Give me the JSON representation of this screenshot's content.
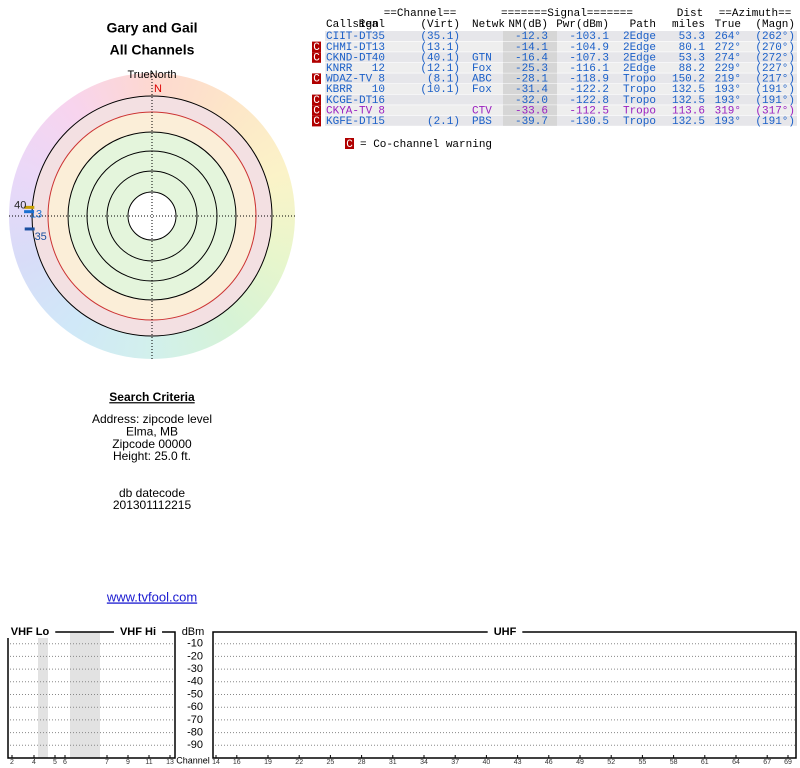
{
  "header": {
    "title": "Gary and Gail",
    "subtitle": "All Channels"
  },
  "polar": {
    "north_label": "TrueNorth",
    "north_marker": "N",
    "markers": [
      {
        "label": "40",
        "azimuth": 274,
        "color": "#c8a000"
      },
      {
        "label": "13",
        "azimuth": 272,
        "color": "#1a6fd0"
      },
      {
        "label": "35",
        "azimuth": 264,
        "color": "#1a4fa0"
      }
    ]
  },
  "table": {
    "groups": [
      {
        "text": "==Channel==",
        "x_col": "channel"
      },
      {
        "text": "=======Signal=======",
        "x_col": "signal"
      },
      {
        "text": "Dist",
        "x_col": "dist"
      },
      {
        "text": "==Azimuth==",
        "x_col": "azimuth"
      }
    ],
    "columns": [
      "Callsign",
      "Real",
      "(Virt)",
      "Netwk",
      "NM(dB)",
      "Pwr(dBm)",
      "Path",
      "miles",
      "True",
      "(Magn)"
    ],
    "rows": [
      {
        "callsign": "CIIT-DT",
        "real": "35",
        "virt": "(35.1)",
        "netwk": null,
        "nm": "-12.3",
        "pwr": "-103.1",
        "path": "2Edge",
        "miles": "53.3",
        "true": "264°",
        "magn": "(262°)",
        "color": "#1a5fc8"
      },
      {
        "flag": "C",
        "callsign": "CHMI-DT",
        "real": "13",
        "virt": "(13.1)",
        "netwk": null,
        "nm": "-14.1",
        "pwr": "-104.9",
        "path": "2Edge",
        "miles": "80.1",
        "true": "272°",
        "magn": "(270°)",
        "color": "#1a5fc8"
      },
      {
        "flag": "C",
        "callsign": "CKND-DT",
        "real": "40",
        "virt": "(40.1)",
        "netwk": "GTN",
        "nm": "-16.4",
        "pwr": "-107.3",
        "path": "2Edge",
        "miles": "53.3",
        "true": "274°",
        "magn": "(272°)",
        "color": "#1a5fc8"
      },
      {
        "callsign": "KNRR",
        "real": "12",
        "virt": "(12.1)",
        "netwk": "Fox",
        "nm": "-25.3",
        "pwr": "-116.1",
        "path": "2Edge",
        "miles": "88.2",
        "true": "229°",
        "magn": "(227°)",
        "color": "#1a5fc8"
      },
      {
        "flag": "C",
        "callsign": "WDAZ-TV",
        "real": "8",
        "virt": "(8.1)",
        "netwk": "ABC",
        "nm": "-28.1",
        "pwr": "-118.9",
        "path": "Tropo",
        "miles": "150.2",
        "true": "219°",
        "magn": "(217°)",
        "color": "#1a5fc8"
      },
      {
        "callsign": "KBRR",
        "real": "10",
        "virt": "(10.1)",
        "netwk": "Fox",
        "nm": "-31.4",
        "pwr": "-122.2",
        "path": "Tropo",
        "miles": "132.5",
        "true": "193°",
        "magn": "(191°)",
        "color": "#1a5fc8"
      },
      {
        "flag": "C",
        "callsign": "KCGE-DT",
        "real": "16",
        "virt": null,
        "netwk": null,
        "nm": "-32.0",
        "pwr": "-122.8",
        "path": "Tropo",
        "miles": "132.5",
        "true": "193°",
        "magn": "(191°)",
        "color": "#1a5fc8"
      },
      {
        "flag": "C",
        "callsign": "CKYA-TV",
        "real": "8",
        "virt": null,
        "netwk": "CTV",
        "nm": "-33.6",
        "pwr": "-112.5",
        "path": "Tropo",
        "miles": "113.6",
        "true": "319°",
        "magn": "(317°)",
        "color": "#9a1fc0"
      },
      {
        "flag": "C",
        "callsign": "KGFE-DT",
        "real": "15",
        "virt": "(2.1)",
        "netwk": "PBS",
        "nm": "-39.7",
        "pwr": "-130.5",
        "path": "Tropo",
        "miles": "132.5",
        "true": "193°",
        "magn": "(191°)",
        "color": "#1a5fc8"
      }
    ]
  },
  "legend": {
    "marker": "C",
    "text": "= Co-channel warning"
  },
  "search_criteria": {
    "title": "Search Criteria",
    "lines": [
      "Address: zipcode level",
      "Elma, MB",
      "Zipcode 00000",
      "Height: 25.0 ft."
    ],
    "datecode_label": "db datecode",
    "datecode": "201301112215"
  },
  "link": "www.tvfool.com",
  "chart_data": {
    "type": "bar",
    "sections": [
      "VHF Lo",
      "VHF Hi",
      "UHF"
    ],
    "y_label": "dBm",
    "x_label": "Channel",
    "ylim": [
      -100,
      0
    ],
    "yticks": [
      -10,
      -20,
      -30,
      -40,
      -50,
      -60,
      -70,
      -80,
      -90
    ],
    "grid": true,
    "xticks": [
      2,
      4,
      5,
      6,
      7,
      9,
      11,
      13,
      14,
      16,
      19,
      22,
      25,
      28,
      31,
      34,
      37,
      40,
      43,
      46,
      49,
      52,
      55,
      58,
      61,
      64,
      67,
      69
    ]
  }
}
